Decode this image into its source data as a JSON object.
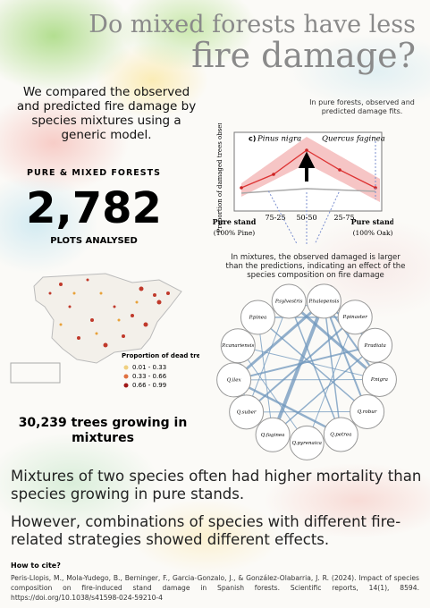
{
  "header": {
    "title_line1": "Do mixed forests have less",
    "title_line2": "fire damage?"
  },
  "intro": "We compared the observed and predicted fire damage by species mixtures using a generic model.",
  "stats": {
    "heading": "PURE & MIXED FORESTS",
    "plots": "2,782",
    "plots_label": "PLOTS ANALYSED",
    "trees": "30,239 trees growing in mixtures"
  },
  "chart": {
    "note_pure": "In pure forests, observed and predicted damage fits.",
    "panel": "c)",
    "species_left": "Pinus nigra",
    "species_right": "Quercus faginea",
    "y_label": "Proportion of damaged trees observed",
    "x_labels": [
      "Pure stand",
      "75-25",
      "50-50",
      "25-75",
      "Pure stand"
    ],
    "x_sublabels": [
      "(100% Pine)",
      "(100% Oak)"
    ],
    "note_mix": "In mixtures, the observed damaged is larger than the predictions, indicating an effect of the species composition on fire damage"
  },
  "map": {
    "legend_title": "Proportion of dead trees",
    "legend": [
      "0.01 - 0.33",
      "0.33 - 0.66",
      "0.66 - 0.99"
    ]
  },
  "network": {
    "nodes": [
      "P.sylvestris",
      "P.halepensis",
      "P.pinaster",
      "P.radiata",
      "P.nigra",
      "Q.robur",
      "Q.petrea",
      "Q.pyrenaica",
      "Q.faginea",
      "Q.suber",
      "Q.ilex",
      "P.canariensis",
      "P.pinea"
    ]
  },
  "findings": [
    "Mixtures of two species often had higher mortality than species growing in pure stands.",
    "However, combinations of species with different fire-related strategies showed different effects."
  ],
  "citation": {
    "heading": "How to cite?",
    "text": "Peris-Llopis, M., Mola-Yudego, B., Berninger, F., Garcia-Gonzalo, J., & González-Olabarria, J. R. (2024). Impact of species composition on fire-induced stand damage in Spanish forests. Scientific reports, 14(1), 8594. https://doi.org/10.1038/s41598-024-59210-4"
  }
}
